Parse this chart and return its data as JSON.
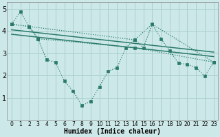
{
  "xlabel": "Humidex (Indice chaleur)",
  "background_color": "#cce8e8",
  "grid_color": "#aacfcf",
  "line_color": "#2a7a6a",
  "xlim": [
    -0.5,
    23.5
  ],
  "ylim": [
    0,
    5.3
  ],
  "yticks": [
    1,
    2,
    3,
    4,
    5
  ],
  "xticks": [
    0,
    1,
    2,
    3,
    4,
    5,
    6,
    7,
    8,
    9,
    10,
    11,
    12,
    13,
    14,
    15,
    16,
    17,
    18,
    19,
    20,
    21,
    22,
    23
  ],
  "main_x": [
    0,
    1,
    2,
    3,
    4,
    5,
    6,
    7,
    8,
    9,
    10,
    11,
    12,
    13,
    14,
    15,
    16,
    17,
    18,
    19,
    20,
    21,
    22,
    23
  ],
  "main_y": [
    4.3,
    4.85,
    4.2,
    3.65,
    2.7,
    2.6,
    1.75,
    1.3,
    0.65,
    0.85,
    1.5,
    2.2,
    2.35,
    3.25,
    3.6,
    3.25,
    4.3,
    3.65,
    3.1,
    2.55,
    2.5,
    2.35,
    1.97,
    2.6
  ],
  "trend1_x": [
    0,
    23
  ],
  "trend1_y": [
    4.05,
    3.05
  ],
  "trend2_x": [
    0,
    23
  ],
  "trend2_y": [
    3.85,
    2.85
  ],
  "env_upper_x": [
    0,
    2,
    14,
    16,
    23
  ],
  "env_upper_y": [
    4.3,
    4.2,
    3.6,
    4.3,
    2.6
  ],
  "env_lower_x": [
    0,
    2,
    3,
    14,
    23
  ],
  "env_lower_y": [
    4.3,
    4.2,
    3.65,
    3.25,
    2.6
  ]
}
